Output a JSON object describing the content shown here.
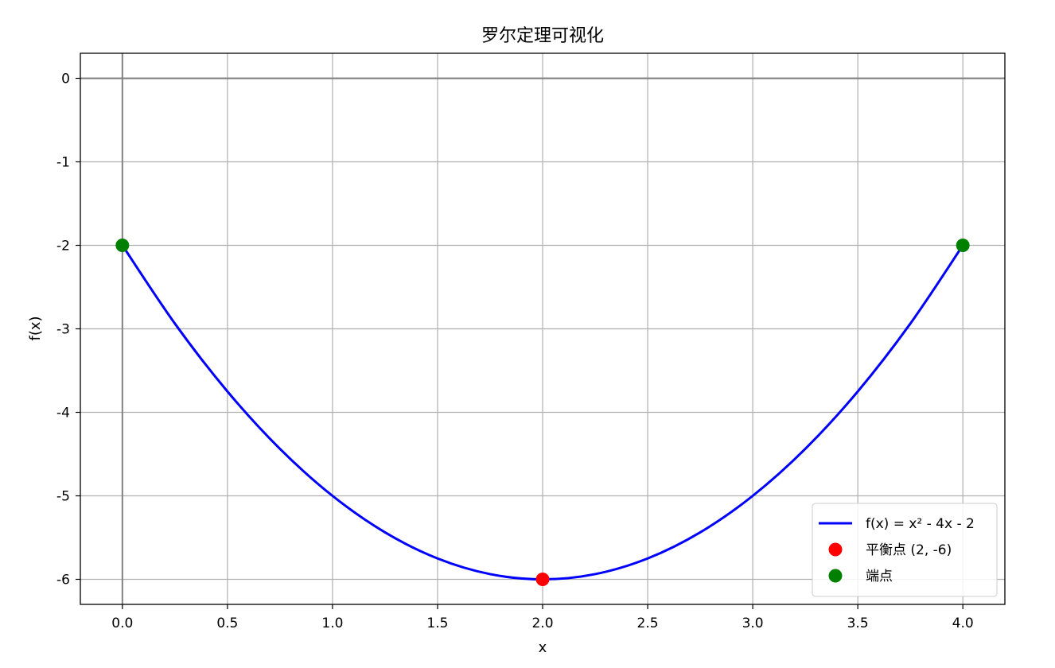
{
  "chart_data": {
    "type": "line",
    "title": "罗尔定理可视化",
    "xlabel": "x",
    "ylabel": "f(x)",
    "xlim": [
      -0.2,
      4.2
    ],
    "ylim": [
      -6.3,
      0.3
    ],
    "xticks": [
      0.0,
      0.5,
      1.0,
      1.5,
      2.0,
      2.5,
      3.0,
      3.5,
      4.0
    ],
    "xtick_labels": [
      "0.0",
      "0.5",
      "1.0",
      "1.5",
      "2.0",
      "2.5",
      "3.0",
      "3.5",
      "4.0"
    ],
    "yticks": [
      0,
      -1,
      -2,
      -3,
      -4,
      -5,
      -6
    ],
    "ytick_labels": [
      "0",
      "-1",
      "-2",
      "-3",
      "-4",
      "-5",
      "-6"
    ],
    "grid": true,
    "reference_lines": {
      "x": 0,
      "y": 0,
      "color": "#808080"
    },
    "legend_position": "lower-right",
    "series": [
      {
        "name": "f(x) = x² - 4x - 2",
        "kind": "line",
        "color": "#0000ff",
        "x": [
          0.0,
          0.25,
          0.5,
          0.75,
          1.0,
          1.25,
          1.5,
          1.75,
          2.0,
          2.25,
          2.5,
          2.75,
          3.0,
          3.25,
          3.5,
          3.75,
          4.0
        ],
        "y": [
          -2.0,
          -2.9375,
          -3.75,
          -4.4375,
          -5.0,
          -5.4375,
          -5.75,
          -5.9375,
          -6.0,
          -5.9375,
          -5.75,
          -5.4375,
          -5.0,
          -4.4375,
          -3.75,
          -2.9375,
          -2.0
        ]
      },
      {
        "name": "平衡点 (2, -6)",
        "kind": "scatter",
        "color": "#ff0000",
        "points": [
          [
            2,
            -6
          ]
        ]
      },
      {
        "name": "端点",
        "kind": "scatter",
        "color": "#008000",
        "points": [
          [
            0,
            -2
          ],
          [
            4,
            -2
          ]
        ]
      }
    ]
  }
}
